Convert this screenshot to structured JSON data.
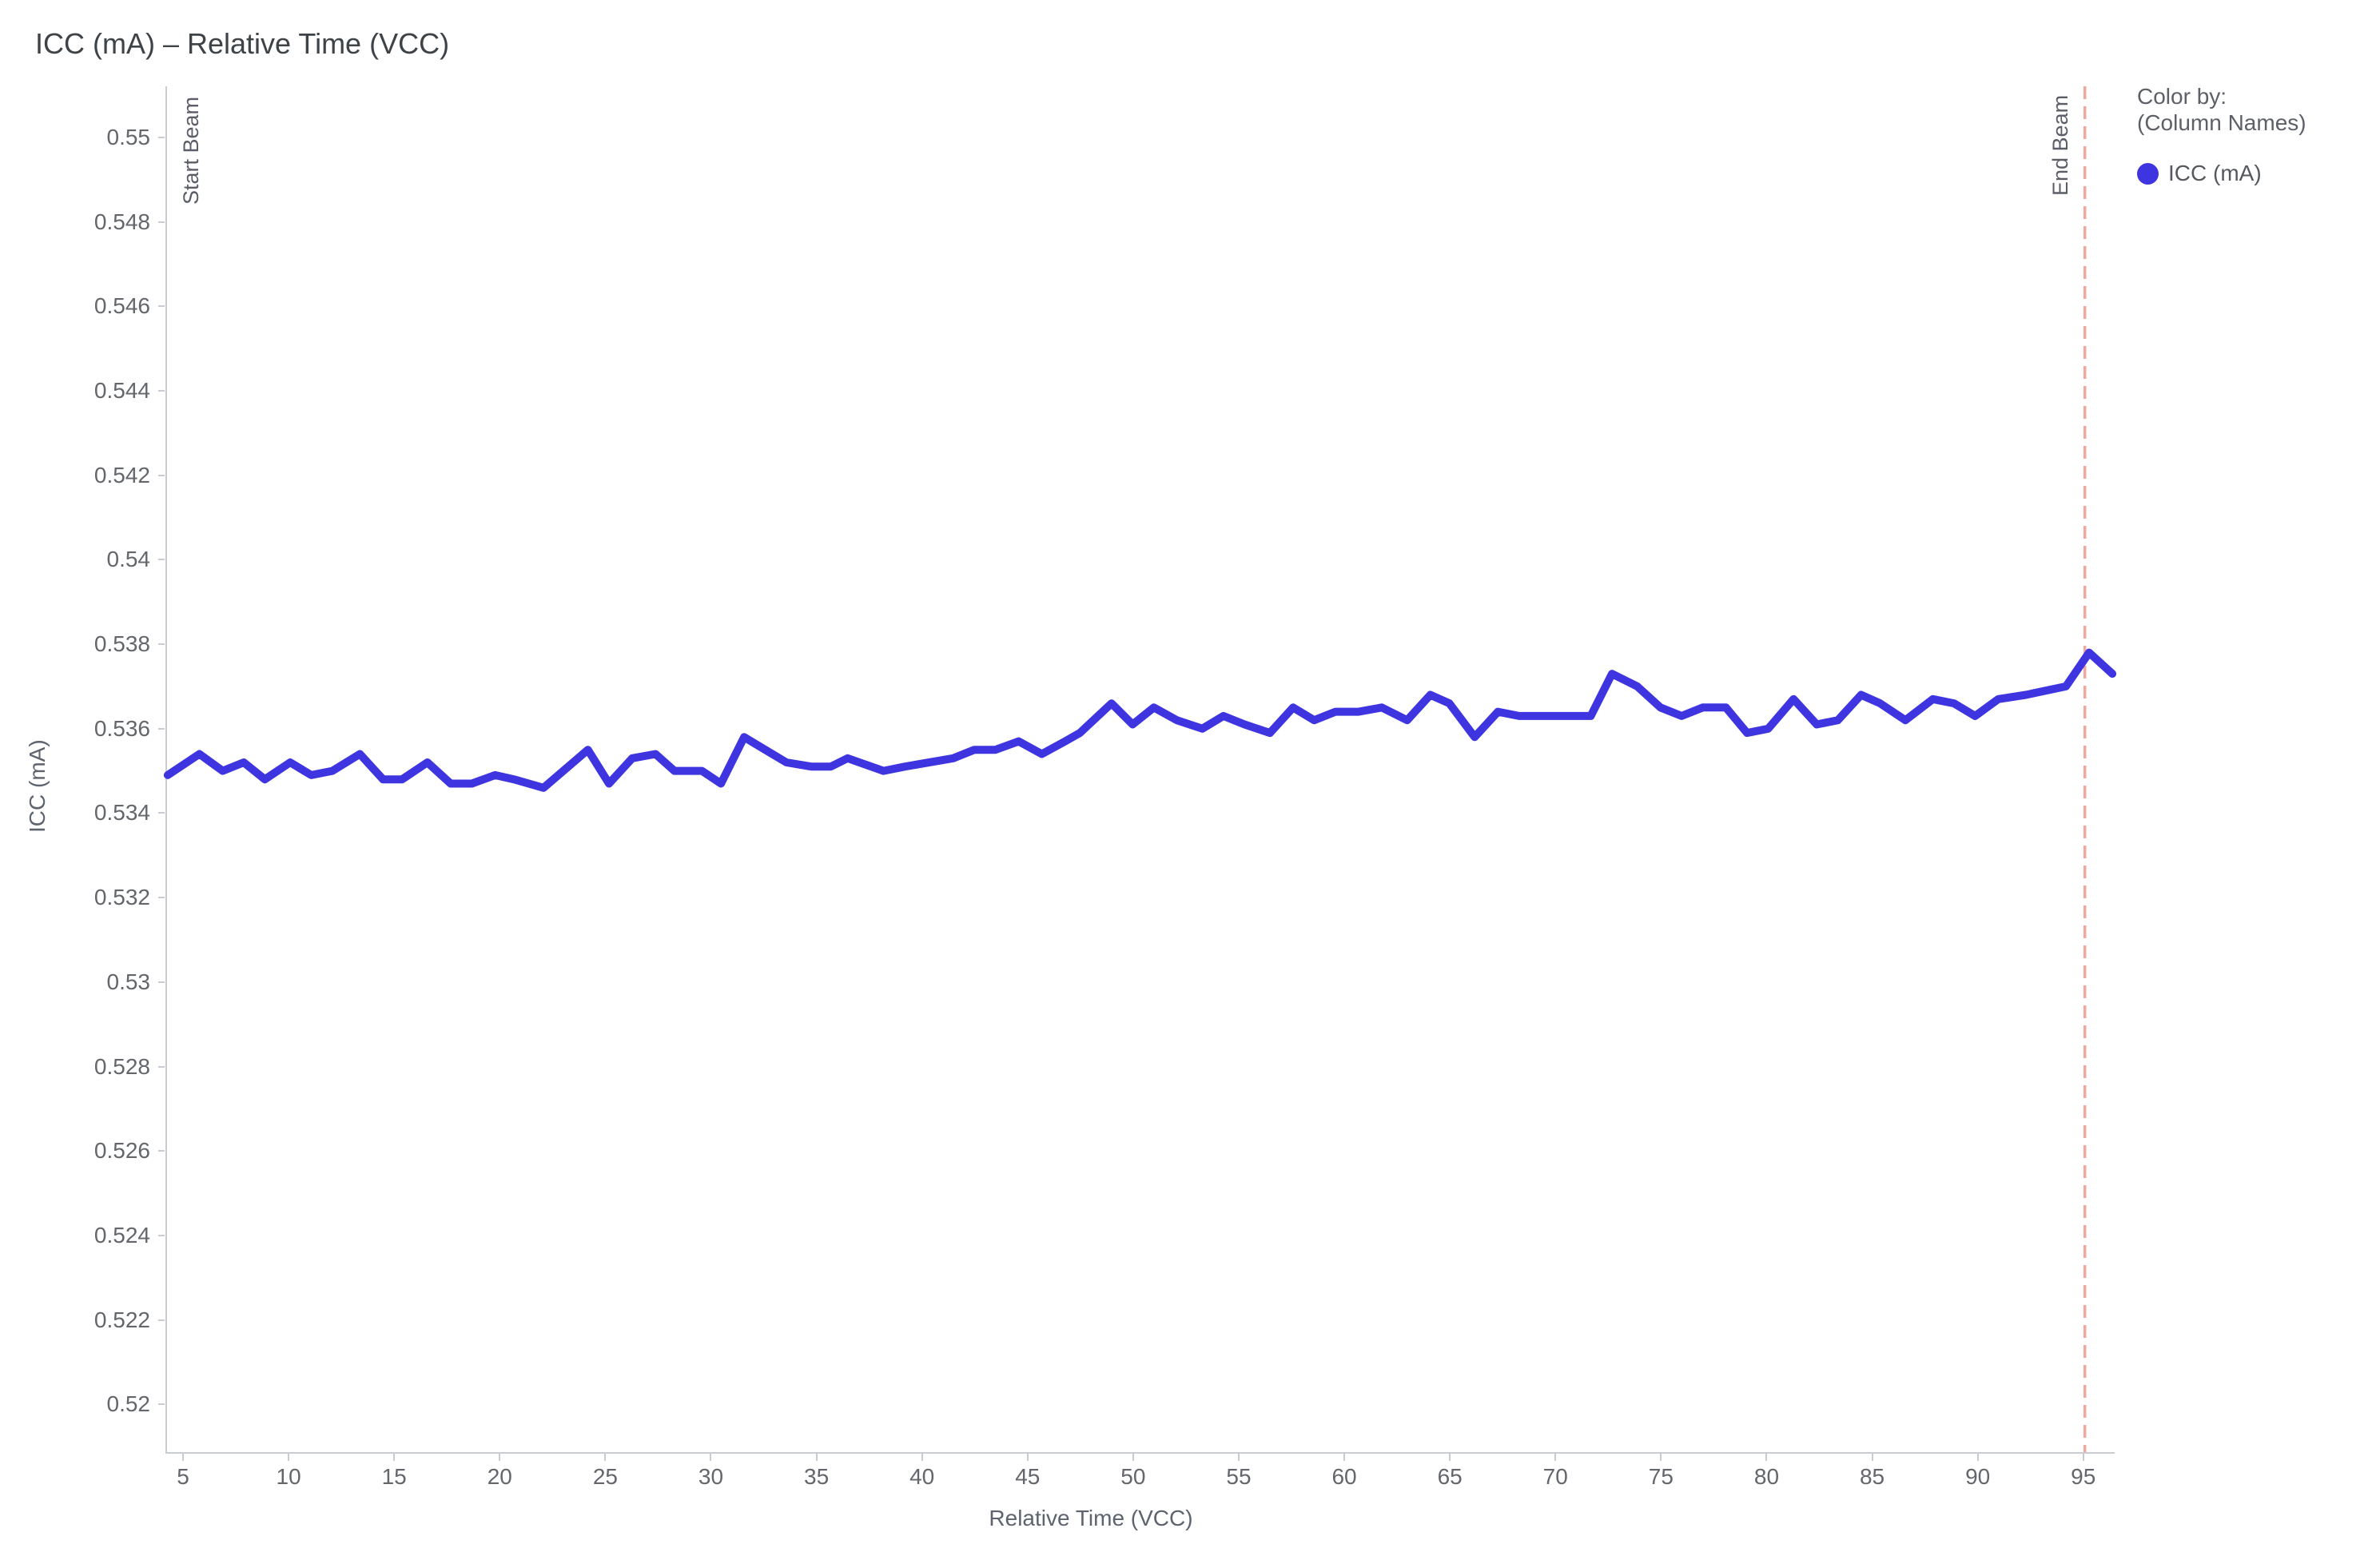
{
  "title": "ICC (mA) – Relative Time (VCC)",
  "legend": {
    "heading": "Color by:",
    "subheading": "(Column Names)",
    "items": [
      {
        "label": "ICC (mA)",
        "color": "#3e35e1"
      }
    ]
  },
  "annotations": {
    "start_beam": {
      "label": "Start Beam",
      "x": 4.17,
      "line_style": "solid",
      "line_color": "#c9ccd2"
    },
    "end_beam": {
      "label": "End Beam",
      "x": 95,
      "line_style": "dashed",
      "line_color": "#f2a79e"
    }
  },
  "colors": {
    "series_blue": "#3e35e1",
    "reference_salmon": "#f2a79e",
    "axis_line": "#c9ccd2",
    "tick_text": "#63666b",
    "title_text": "#3e4347"
  },
  "chart_data": {
    "type": "line",
    "title": "ICC (mA) – Relative Time (VCC)",
    "xlabel": "Relative Time (VCC)",
    "ylabel": "ICC (mA)",
    "xlim": [
      4.167,
      96.41
    ],
    "ylim": [
      0.51887,
      0.55121
    ],
    "grid": false,
    "legend_position": "right",
    "x_ticks": [
      5,
      10,
      15,
      20,
      25,
      30,
      35,
      40,
      45,
      50,
      55,
      60,
      65,
      70,
      75,
      80,
      85,
      90,
      95
    ],
    "y_ticks": [
      {
        "value": 0.55,
        "label": "0.55"
      },
      {
        "value": 0.548,
        "label": "0.548"
      },
      {
        "value": 0.546,
        "label": "0.546"
      },
      {
        "value": 0.544,
        "label": "0.544"
      },
      {
        "value": 0.542,
        "label": "0.542"
      },
      {
        "value": 0.54,
        "label": "0.54"
      },
      {
        "value": 0.538,
        "label": "0.538"
      },
      {
        "value": 0.536,
        "label": "0.536"
      },
      {
        "value": 0.534,
        "label": "0.534"
      },
      {
        "value": 0.532,
        "label": "0.532"
      },
      {
        "value": 0.53,
        "label": "0.53"
      },
      {
        "value": 0.528,
        "label": "0.528"
      },
      {
        "value": 0.526,
        "label": "0.526"
      },
      {
        "value": 0.524,
        "label": "0.524"
      },
      {
        "value": 0.522,
        "label": "0.522"
      },
      {
        "value": 0.52,
        "label": "0.52"
      }
    ],
    "series": [
      {
        "name": "ICC (mA)",
        "color": "#3e35e1",
        "stroke_width": 10,
        "points": [
          [
            4.2,
            0.5349
          ],
          [
            5.7,
            0.5354
          ],
          [
            6.8,
            0.535
          ],
          [
            7.8,
            0.5352
          ],
          [
            8.8,
            0.5348
          ],
          [
            10.0,
            0.5352
          ],
          [
            11.0,
            0.5349
          ],
          [
            12.0,
            0.535
          ],
          [
            13.3,
            0.5354
          ],
          [
            14.4,
            0.5348
          ],
          [
            15.3,
            0.5348
          ],
          [
            16.5,
            0.5352
          ],
          [
            17.6,
            0.5347
          ],
          [
            18.6,
            0.5347
          ],
          [
            19.7,
            0.5349
          ],
          [
            20.6,
            0.5348
          ],
          [
            22.0,
            0.5346
          ],
          [
            24.1,
            0.5355
          ],
          [
            25.1,
            0.5347
          ],
          [
            26.2,
            0.5353
          ],
          [
            27.3,
            0.5354
          ],
          [
            28.2,
            0.535
          ],
          [
            29.5,
            0.535
          ],
          [
            30.4,
            0.5347
          ],
          [
            31.5,
            0.5358
          ],
          [
            32.5,
            0.5355
          ],
          [
            33.5,
            0.5352
          ],
          [
            34.7,
            0.5351
          ],
          [
            35.6,
            0.5351
          ],
          [
            36.4,
            0.5353
          ],
          [
            38.1,
            0.535
          ],
          [
            39.1,
            0.5351
          ],
          [
            41.4,
            0.5353
          ],
          [
            42.4,
            0.5355
          ],
          [
            43.4,
            0.5355
          ],
          [
            44.5,
            0.5357
          ],
          [
            45.6,
            0.5354
          ],
          [
            46.7,
            0.5357
          ],
          [
            47.4,
            0.5359
          ],
          [
            48.9,
            0.5366
          ],
          [
            49.9,
            0.5361
          ],
          [
            50.9,
            0.5365
          ],
          [
            52.0,
            0.5362
          ],
          [
            53.2,
            0.536
          ],
          [
            54.2,
            0.5363
          ],
          [
            55.2,
            0.5361
          ],
          [
            56.4,
            0.5359
          ],
          [
            57.5,
            0.5365
          ],
          [
            58.5,
            0.5362
          ],
          [
            59.5,
            0.5364
          ],
          [
            60.6,
            0.5364
          ],
          [
            61.7,
            0.5365
          ],
          [
            62.9,
            0.5362
          ],
          [
            64.0,
            0.5368
          ],
          [
            64.9,
            0.5366
          ],
          [
            66.1,
            0.5358
          ],
          [
            67.2,
            0.5364
          ],
          [
            68.2,
            0.5363
          ],
          [
            69.0,
            0.5363
          ],
          [
            70.1,
            0.5363
          ],
          [
            71.6,
            0.5363
          ],
          [
            72.6,
            0.5373
          ],
          [
            73.8,
            0.537
          ],
          [
            74.9,
            0.5365
          ],
          [
            75.9,
            0.5363
          ],
          [
            76.9,
            0.5365
          ],
          [
            78.0,
            0.5365
          ],
          [
            79.0,
            0.5359
          ],
          [
            80.0,
            0.536
          ],
          [
            81.2,
            0.5367
          ],
          [
            82.3,
            0.5361
          ],
          [
            83.3,
            0.5362
          ],
          [
            84.4,
            0.5368
          ],
          [
            85.3,
            0.5366
          ],
          [
            86.5,
            0.5362
          ],
          [
            87.8,
            0.5367
          ],
          [
            88.8,
            0.5366
          ],
          [
            89.8,
            0.5363
          ],
          [
            90.9,
            0.5367
          ],
          [
            92.2,
            0.5368
          ],
          [
            94.1,
            0.537
          ],
          [
            95.2,
            0.5378
          ],
          [
            96.3,
            0.5373
          ]
        ]
      }
    ]
  }
}
